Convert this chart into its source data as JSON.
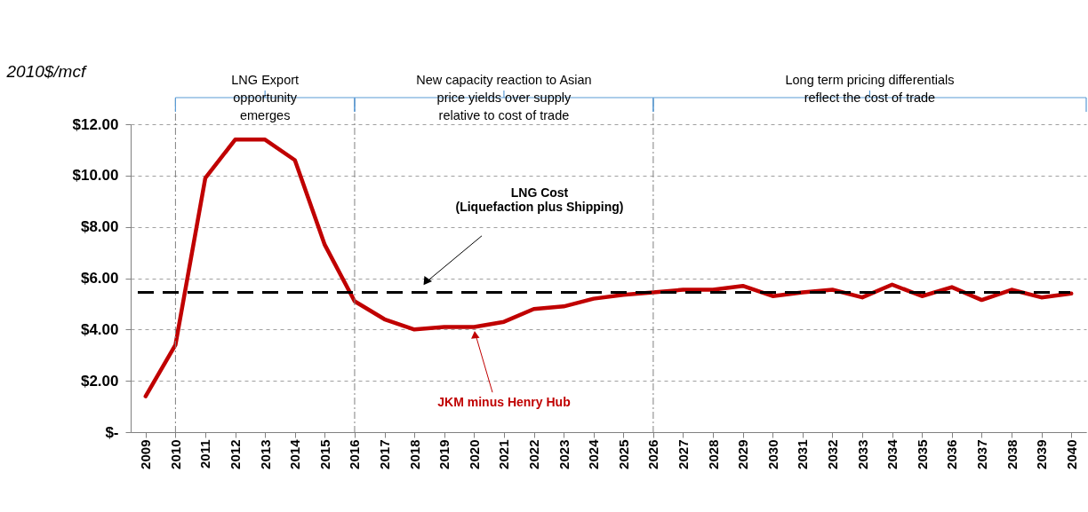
{
  "chart_data": {
    "type": "line",
    "ylabel": "2010$/mcf",
    "categories": [
      "2009",
      "2010",
      "2011",
      "2012",
      "2013",
      "2014",
      "2015",
      "2016",
      "2017",
      "2018",
      "2019",
      "2020",
      "2021",
      "2022",
      "2023",
      "2024",
      "2025",
      "2026",
      "2027",
      "2028",
      "2029",
      "2030",
      "2031",
      "2032",
      "2033",
      "2034",
      "2035",
      "2036",
      "2037",
      "2038",
      "2039",
      "2040"
    ],
    "series": [
      {
        "name": "JKM minus Henry Hub",
        "color": "#c00000",
        "values": [
          1.4,
          3.4,
          9.9,
          11.4,
          11.4,
          10.6,
          7.3,
          5.1,
          4.4,
          4.0,
          4.1,
          4.1,
          4.3,
          4.8,
          4.9,
          5.2,
          5.35,
          5.45,
          5.55,
          5.55,
          5.7,
          5.3,
          5.45,
          5.55,
          5.25,
          5.75,
          5.3,
          5.65,
          5.15,
          5.55,
          5.25,
          5.4
        ]
      }
    ],
    "ylim": [
      0,
      12
    ],
    "yticks": [
      {
        "value": 0,
        "label": "$-"
      },
      {
        "value": 2,
        "label": "$2.00"
      },
      {
        "value": 4,
        "label": "$4.00"
      },
      {
        "value": 6,
        "label": "$6.00"
      },
      {
        "value": 8,
        "label": "$8.00"
      },
      {
        "value": 10,
        "label": "$10.00"
      },
      {
        "value": 12,
        "label": "$12.00"
      }
    ],
    "ref_lines": [
      {
        "axis": "y",
        "value": 5.45,
        "label": "LNG Cost\n(Liquefaction plus Shipping)",
        "color": "#000000",
        "line_style": "dashed"
      },
      {
        "axis": "x",
        "value": "2010",
        "color": "#808080",
        "line_style": "dashdot"
      },
      {
        "axis": "x",
        "value": "2016",
        "color": "#808080",
        "line_style": "dashdot"
      },
      {
        "axis": "x",
        "value": "2026",
        "color": "#808080",
        "line_style": "dashdot"
      }
    ],
    "annotations": [
      "LNG  Export\nopportunity\nemerges",
      "New  capacity reaction to Asian\nprice yields over supply\nrelative to cost of trade",
      "Long term pricing differentials\nreflect the cost of trade"
    ],
    "grid": "y",
    "marker": "none",
    "line_style": "solid"
  }
}
